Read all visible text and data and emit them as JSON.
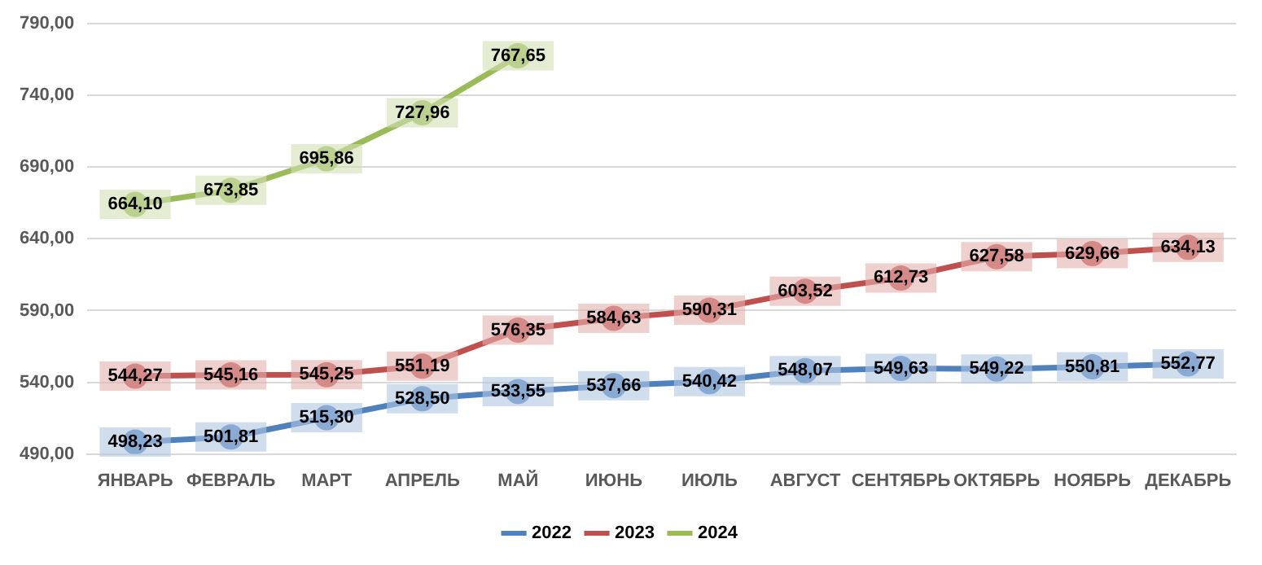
{
  "chart_data": {
    "type": "line",
    "categories": [
      "ЯНВАРЬ",
      "ФЕВРАЛЬ",
      "МАРТ",
      "АПРЕЛЬ",
      "МАЙ",
      "ИЮНЬ",
      "ИЮЛЬ",
      "АВГУСТ",
      "СЕНТЯБРЬ",
      "ОКТЯБРЬ",
      "НОЯБРЬ",
      "ДЕКАБРЬ"
    ],
    "series": [
      {
        "name": "2022",
        "color": "#4f81bd",
        "values": [
          498.23,
          501.81,
          515.3,
          528.5,
          533.55,
          537.66,
          540.42,
          548.07,
          549.63,
          549.22,
          550.81,
          552.77
        ],
        "value_labels": [
          "498,23",
          "501,81",
          "515,30",
          "528,50",
          "533,55",
          "537,66",
          "540,42",
          "548,07",
          "549,63",
          "549,22",
          "550,81",
          "552,77"
        ]
      },
      {
        "name": "2023",
        "color": "#c0504d",
        "values": [
          544.27,
          545.16,
          545.25,
          551.19,
          576.35,
          584.63,
          590.31,
          603.52,
          612.73,
          627.58,
          629.66,
          634.13
        ],
        "value_labels": [
          "544,27",
          "545,16",
          "545,25",
          "551,19",
          "576,35",
          "584,63",
          "590,31",
          "603,52",
          "612,73",
          "627,58",
          "629,66",
          "634,13"
        ]
      },
      {
        "name": "2024",
        "color": "#9bbb59",
        "values": [
          664.1,
          673.85,
          695.86,
          727.96,
          767.65,
          null,
          null,
          null,
          null,
          null,
          null,
          null
        ],
        "value_labels": [
          "664,10",
          "673,85",
          "695,86",
          "727,96",
          "767,65",
          null,
          null,
          null,
          null,
          null,
          null,
          null
        ]
      }
    ],
    "ylim": [
      490,
      790
    ],
    "yticks": [
      {
        "value": 490,
        "label": "490,00"
      },
      {
        "value": 540,
        "label": "540,00"
      },
      {
        "value": 590,
        "label": "590,00"
      },
      {
        "value": 640,
        "label": "640,00"
      },
      {
        "value": 690,
        "label": "690,00"
      },
      {
        "value": 740,
        "label": "740,00"
      },
      {
        "value": 790,
        "label": "790,00"
      }
    ],
    "grid": "y",
    "legend": "bottom",
    "marker": "circle",
    "line_style": "solid"
  }
}
